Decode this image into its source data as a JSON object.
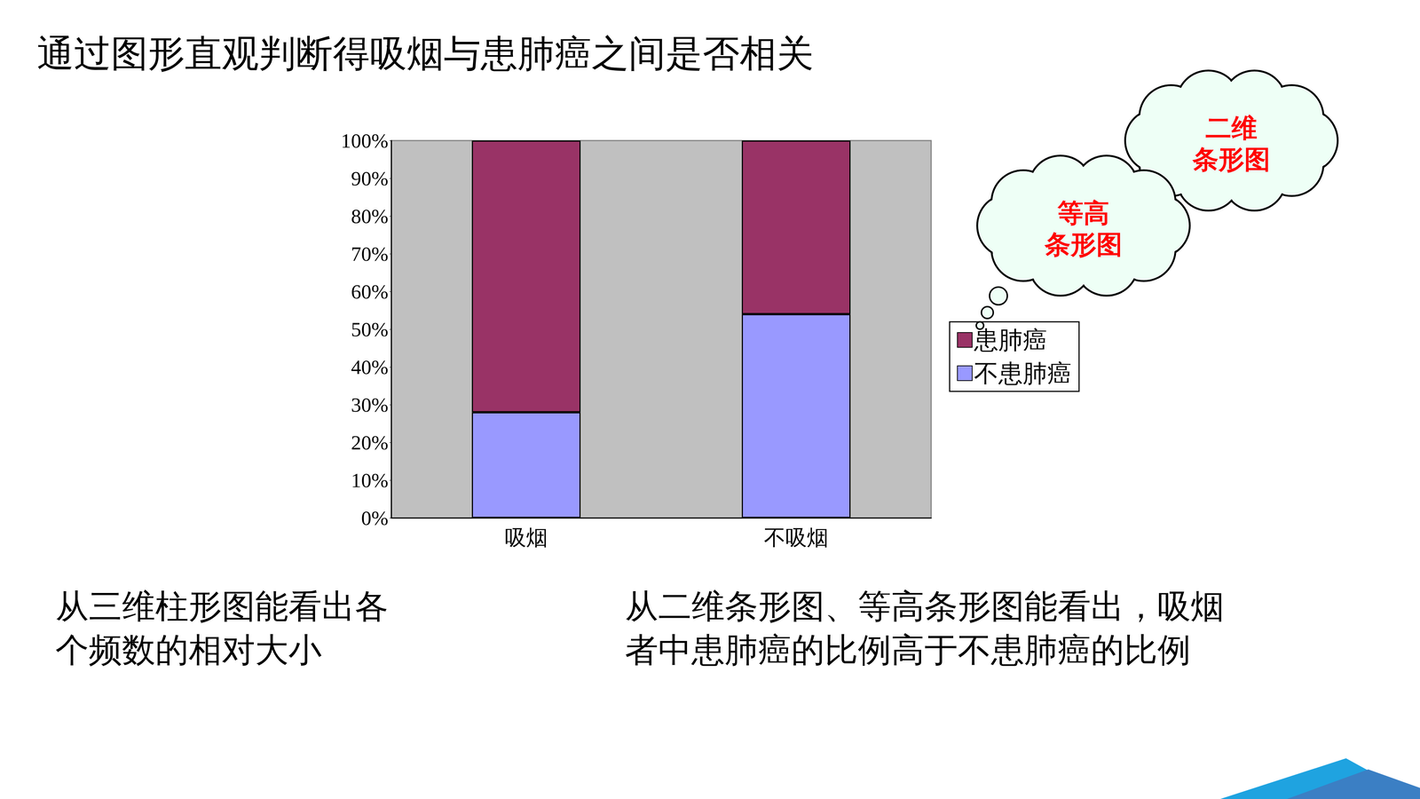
{
  "chart_data": {
    "type": "bar",
    "title": "通过图形直观判断得吸烟与患肺癌之间是否相关",
    "categories": [
      "吸烟",
      "不吸烟"
    ],
    "series": [
      {
        "name": "不患肺癌",
        "color": "#9999ff",
        "values": [
          28,
          54
        ]
      },
      {
        "name": "患肺癌",
        "color": "#993366",
        "values": [
          72,
          46
        ]
      }
    ],
    "stacked": true,
    "ylim": [
      0,
      100
    ],
    "yticks": [
      {
        "value": 0,
        "label": "0%"
      },
      {
        "value": 10,
        "label": "10%"
      },
      {
        "value": 20,
        "label": "20%"
      },
      {
        "value": 30,
        "label": "30%"
      },
      {
        "value": 40,
        "label": "40%"
      },
      {
        "value": 50,
        "label": "50%"
      },
      {
        "value": 60,
        "label": "60%"
      },
      {
        "value": 70,
        "label": "70%"
      },
      {
        "value": 80,
        "label": "80%"
      },
      {
        "value": 90,
        "label": "90%"
      },
      {
        "value": 100,
        "label": "100%"
      }
    ],
    "grid": false,
    "legend": "right",
    "annotations": [
      "从三维柱形图能看出各个频数的相对大小",
      "从二维条形图、等高条形图能看出，吸烟者中患肺癌的比例高于不患肺癌的比例"
    ],
    "callouts": [
      "二维条形图",
      "等高条形图"
    ]
  }
}
